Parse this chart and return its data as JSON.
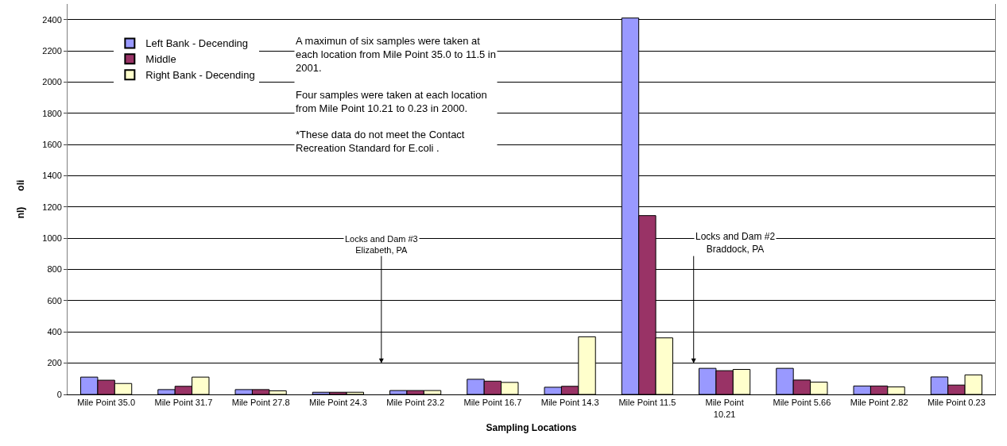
{
  "chart_data": {
    "type": "bar",
    "xlabel": "Sampling Locations",
    "ylabel": "nl)      oli",
    "categories": [
      "Mile Point 35.0",
      "Mile Point 31.7",
      "Mile Point 27.8",
      "Mile Point 24.3",
      "Mile Point 23.2",
      "Mile Point 16.7",
      "Mile Point 14.3",
      "Mile Point 11.5",
      "Mile Point\n10.21",
      "Mile Point 5.66",
      "Mile Point 2.82",
      "Mile Point 0.23"
    ],
    "series": [
      {
        "name": "Left Bank - Decending",
        "color": "#9999ff",
        "values": [
          111,
          31,
          31,
          14,
          25,
          97,
          46,
          2410,
          167,
          167,
          54,
          112
        ]
      },
      {
        "name": "Middle",
        "color": "#993366",
        "values": [
          91,
          52,
          31,
          14,
          25,
          85,
          52,
          1145,
          152,
          92,
          54,
          60
        ]
      },
      {
        "name": "Right Bank - Decending",
        "color": "#ffffcc",
        "values": [
          70,
          111,
          23,
          14,
          25,
          77,
          369,
          362,
          160,
          79,
          48,
          125
        ]
      }
    ],
    "ylim": [
      0,
      2500
    ],
    "yticks": [
      0,
      200,
      400,
      600,
      800,
      1000,
      1200,
      1400,
      1600,
      1800,
      2000,
      2200,
      2400
    ],
    "grid": "y",
    "legend": "top left",
    "annotations": [
      "A maximun of six samples were taken at\neach location from Mile Point 35.0 to 11.5 in\n2001.\n\nFour samples were taken at each location\nfrom Mile Point 10.21 to 0.23 in 2000.\n\n*These data do not meet the Contact\nRecreation Standard for E.coli .",
      "Locks and Dam #3\nElizabeth, PA",
      "Locks and Dam #2\nBraddock, PA"
    ]
  }
}
